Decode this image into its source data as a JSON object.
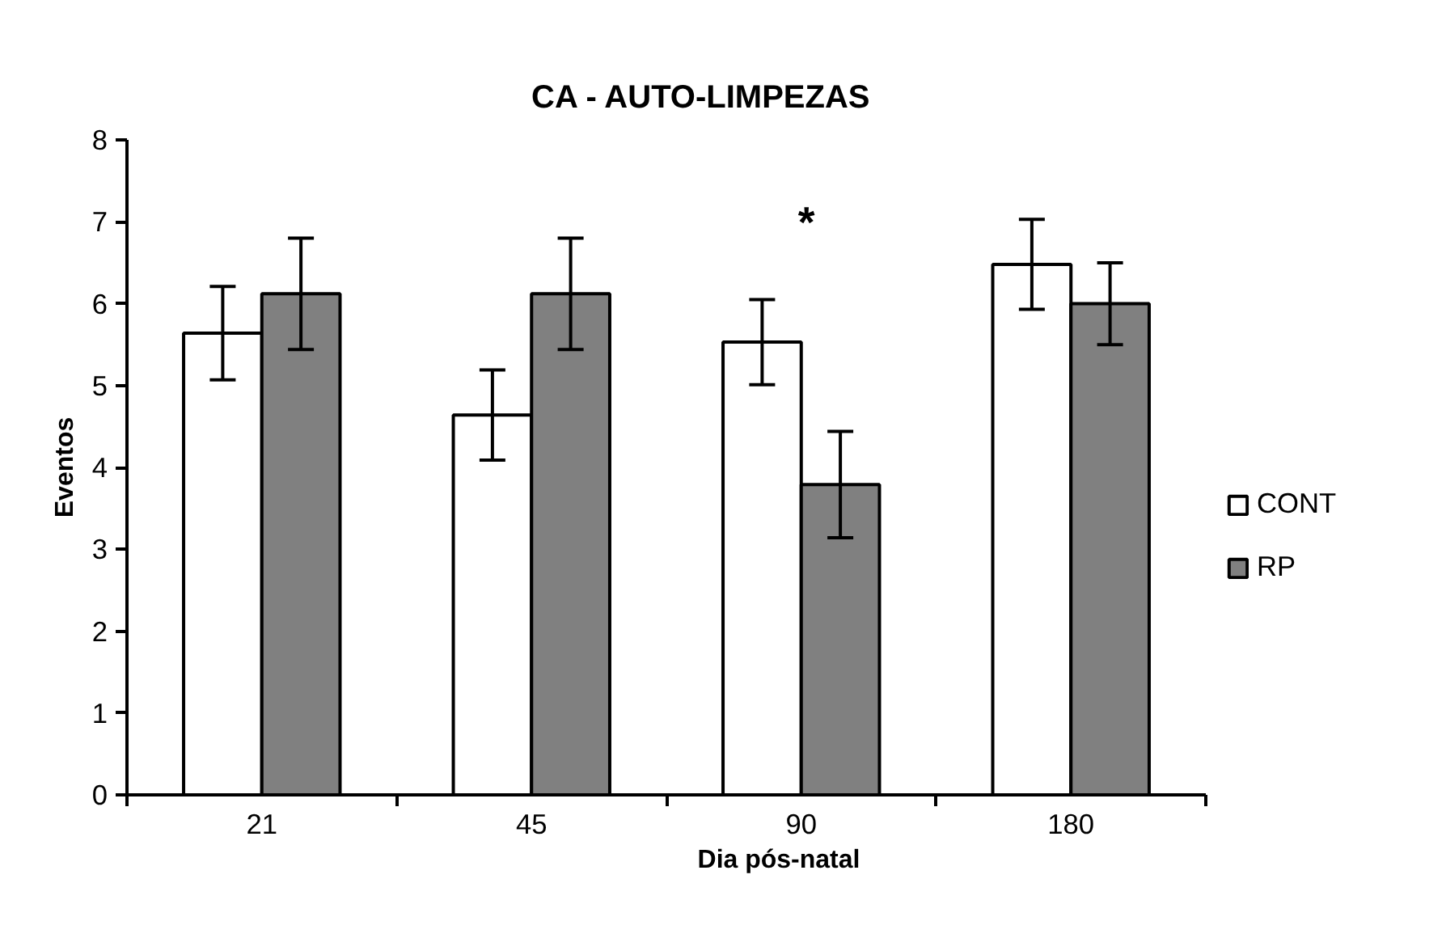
{
  "chart_data": {
    "type": "bar",
    "title": "CA - AUTO-LIMPEZAS",
    "xlabel": "Dia pós-natal",
    "ylabel": "Eventos",
    "categories": [
      "21",
      "45",
      "90",
      "180"
    ],
    "series": [
      {
        "name": "CONT",
        "color": "#ffffff",
        "values": [
          5.64,
          4.64,
          5.53,
          6.48
        ],
        "errors": [
          0.57,
          0.55,
          0.52,
          0.55
        ]
      },
      {
        "name": "RP",
        "color": "#808080",
        "values": [
          6.12,
          6.12,
          3.79,
          6.0
        ],
        "errors": [
          0.68,
          0.68,
          0.65,
          0.5
        ]
      }
    ],
    "ylim": [
      0,
      8
    ],
    "yticks": [
      0,
      1,
      2,
      3,
      4,
      5,
      6,
      7,
      8
    ],
    "annotations": [
      "*"
    ],
    "grid": false,
    "legend": "right"
  }
}
